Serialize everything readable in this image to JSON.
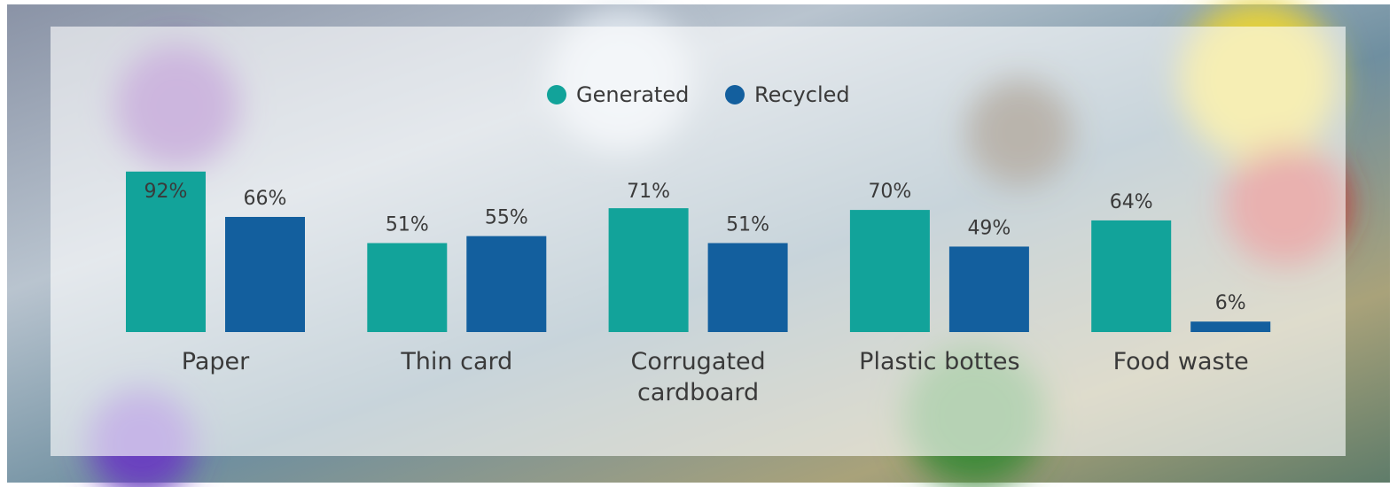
{
  "chart_data": {
    "type": "bar",
    "categories": [
      "Paper",
      "Thin card",
      "Corrugated cardboard",
      "Plastic bottes",
      "Food waste"
    ],
    "series": [
      {
        "name": "Generated",
        "color": "#12a39a",
        "values": [
          92,
          51,
          71,
          70,
          64
        ],
        "value_labels": [
          "92%",
          "51%",
          "71%",
          "70%",
          "64%"
        ]
      },
      {
        "name": "Recycled",
        "color": "#135f9e",
        "values": [
          66,
          55,
          51,
          49,
          6
        ],
        "value_labels": [
          "66%",
          "55%",
          "51%",
          "49%",
          "6%"
        ]
      }
    ],
    "ylim": [
      0,
      100
    ]
  }
}
